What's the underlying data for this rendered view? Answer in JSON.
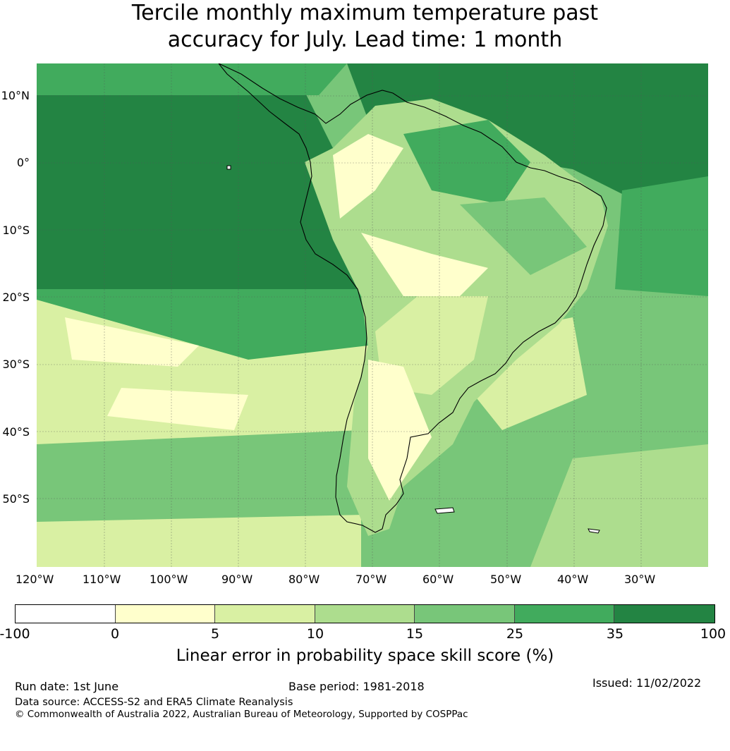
{
  "title": {
    "line1": "Tercile monthly maximum temperature past",
    "line2": "accuracy for July. Lead time: 1 month"
  },
  "latitude_labels": [
    "10°N",
    "0°",
    "10°S",
    "20°S",
    "30°S",
    "40°S",
    "50°S"
  ],
  "longitude_labels": [
    "120°W",
    "110°W",
    "100°W",
    "90°W",
    "80°W",
    "70°W",
    "60°W",
    "50°W",
    "40°W",
    "30°W"
  ],
  "colorbar": {
    "ticks": [
      "-100",
      "0",
      "5",
      "10",
      "15",
      "25",
      "35",
      "100"
    ],
    "colors": [
      "#ffffff",
      "#ffffcc",
      "#d9f0a3",
      "#addd8e",
      "#78c679",
      "#41ab5d",
      "#238443"
    ],
    "label": "Linear error in probability space skill score (%)"
  },
  "footer": {
    "run_date": "Run date: 1st June",
    "base_period": "Base period: 1981-2018",
    "issued": "Issued: 11/02/2022",
    "data_source": "Data source: ACCESS-S2 and ERA5 Climate Reanalysis",
    "copyright": "© Commonwealth of Australia 2022, Australian Bureau of Meteorology, Supported by COSPPac"
  }
}
